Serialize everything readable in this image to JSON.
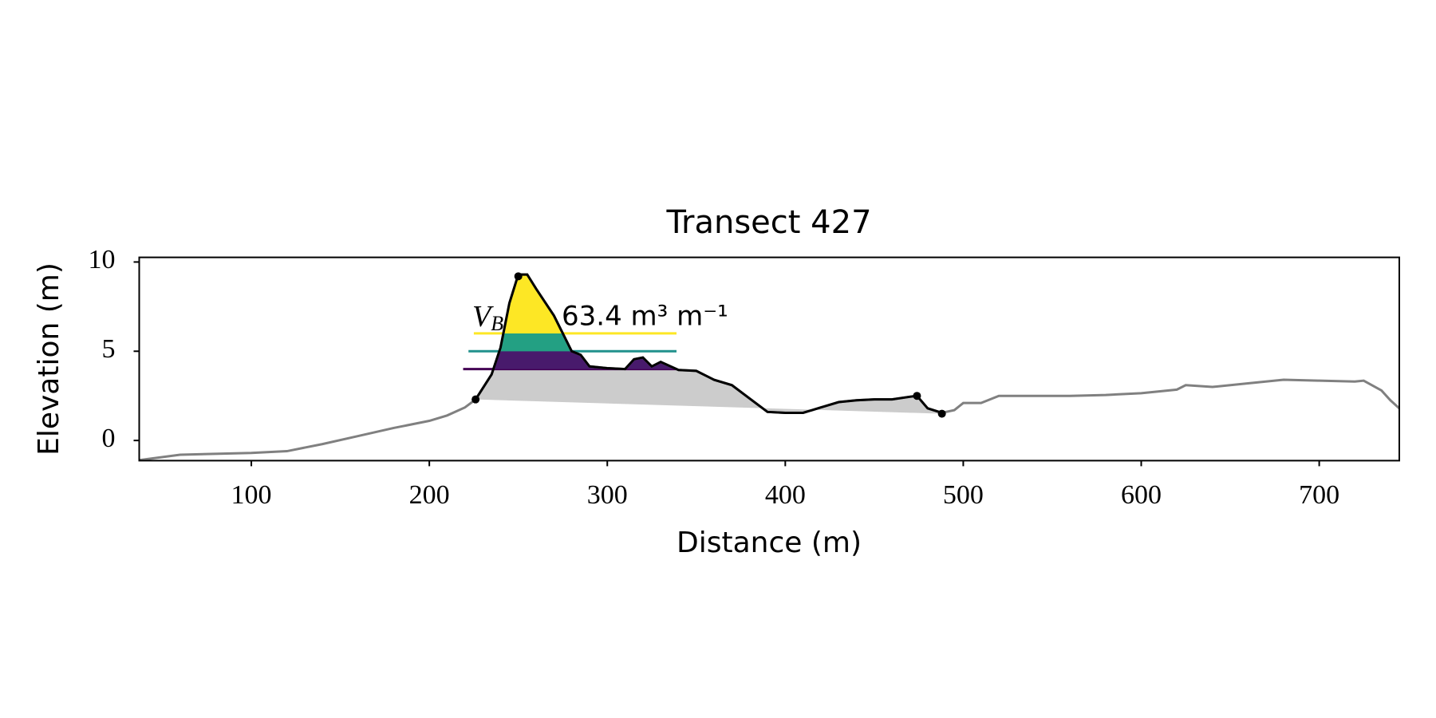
{
  "chart_data": {
    "type": "line",
    "title": "Transect 427",
    "x_label": "Distance (m)",
    "y_label": "Elevation (m)",
    "xlim": [
      37,
      745
    ],
    "ylim": [
      -1.13,
      10.26
    ],
    "xticks": [
      100,
      200,
      300,
      400,
      500,
      600,
      700
    ],
    "yticks": [
      0,
      5,
      10
    ],
    "series": [
      {
        "color": "#808080",
        "dune_color": "#000000",
        "fill_color": "#cccccc",
        "x": [
          37,
          60,
          100,
          120,
          140,
          160,
          180,
          200,
          210,
          220,
          226,
          235,
          240,
          245,
          250,
          255,
          260,
          270,
          280,
          285,
          290,
          300,
          310,
          315,
          320,
          325,
          330,
          340,
          350,
          360,
          370,
          380,
          390,
          400,
          410,
          420,
          430,
          440,
          450,
          460,
          470,
          474,
          480,
          488,
          495,
          500,
          510,
          520,
          540,
          560,
          580,
          600,
          620,
          625,
          640,
          660,
          680,
          700,
          720,
          725,
          735,
          740,
          745
        ],
        "values": [
          -1.1,
          -0.8,
          -0.7,
          -0.6,
          -0.2,
          0.25,
          0.7,
          1.1,
          1.4,
          1.85,
          2.3,
          3.7,
          5.2,
          7.7,
          9.3,
          9.3,
          8.5,
          7.0,
          5.0,
          4.8,
          4.15,
          4.05,
          4.0,
          4.55,
          4.65,
          4.15,
          4.4,
          3.95,
          3.9,
          3.4,
          3.1,
          2.35,
          1.6,
          1.55,
          1.55,
          1.85,
          2.15,
          2.25,
          2.3,
          2.3,
          2.45,
          2.5,
          1.8,
          1.55,
          1.7,
          2.1,
          2.1,
          2.5,
          2.5,
          2.5,
          2.55,
          2.65,
          2.85,
          3.1,
          3.0,
          3.2,
          3.4,
          3.35,
          3.3,
          3.35,
          2.8,
          2.25,
          1.8
        ]
      }
    ],
    "points": {
      "x": [
        226,
        250,
        474,
        488
      ],
      "values": [
        2.3,
        9.2,
        2.5,
        1.5
      ]
    },
    "levels": [
      {
        "value": 4,
        "color": "#481a6c",
        "line_from": 219
      },
      {
        "value": 5,
        "color": "#23a083",
        "line_from": 222
      },
      {
        "value": 6,
        "color": "#fde725",
        "line_from": 225
      }
    ],
    "level_line_colors": [
      "#440154",
      "#21918c",
      "#fde725"
    ],
    "annotation": {
      "symbol": "V",
      "subscript": "B",
      "text": "63.4 m³ m⁻¹"
    }
  }
}
